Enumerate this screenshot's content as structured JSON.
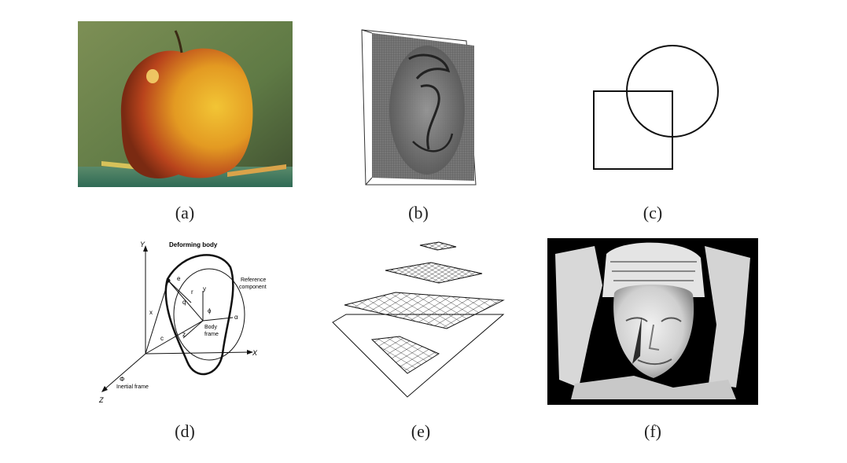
{
  "figure": {
    "captions": [
      "(a)",
      "(b)",
      "(c)",
      "(d)",
      "(e)",
      "(f)"
    ],
    "panel_d_labels": {
      "deforming_body": "Deforming body",
      "reference_component_1": "Reference",
      "reference_component_2": "component",
      "body_frame_1": "Body",
      "body_frame_2": "frame",
      "inertial_frame": "Inertial frame",
      "axis_Y": "Y",
      "axis_X": "X",
      "axis_Z": "Z",
      "phi_upper": "Φ",
      "x": "x",
      "c": "c",
      "e": "e",
      "r": "r",
      "q": "q",
      "y": "y",
      "phi": "ϕ",
      "z": "z",
      "alpha": "α"
    }
  },
  "colors": {
    "apple_red": "#b8431c",
    "apple_yellow": "#e8b62a",
    "background_green": "#6f8a4c",
    "line": "#111111"
  }
}
